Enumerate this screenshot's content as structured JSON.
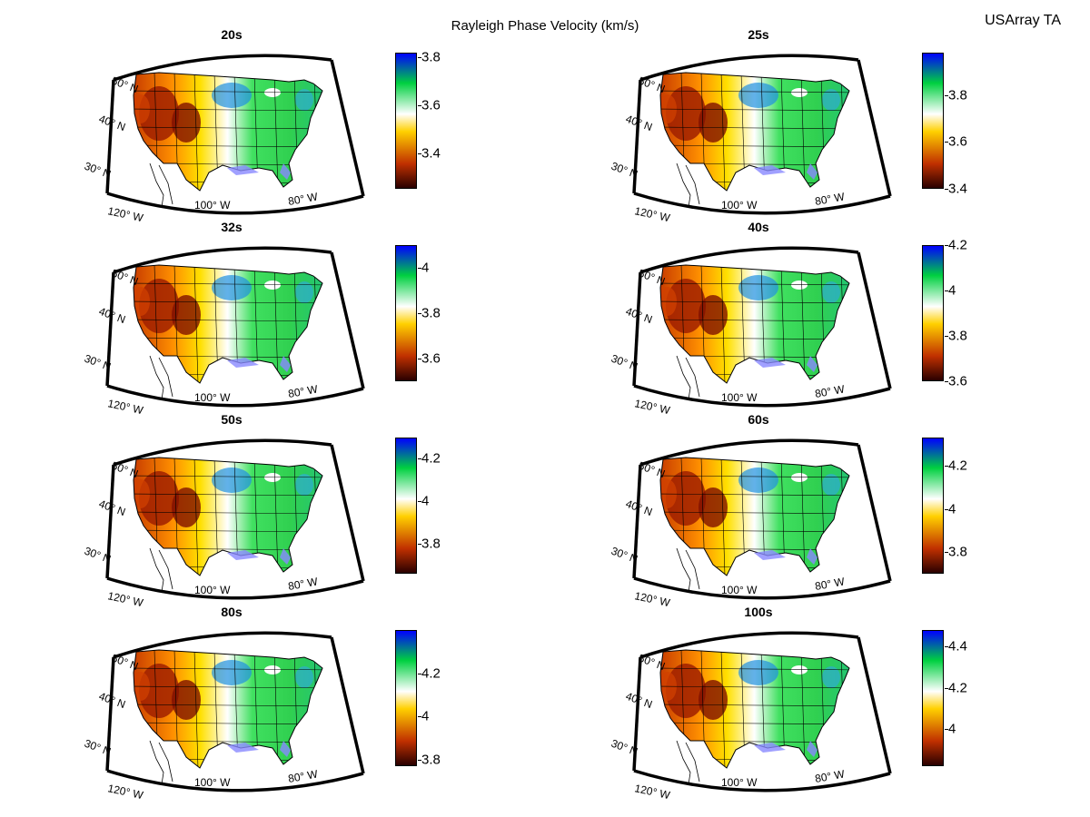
{
  "figure": {
    "title": "Rayleigh Phase Velocity (km/s)",
    "corner_label": "USArray TA"
  },
  "map_labels": {
    "lat_50": "50° N",
    "lat_40": "40° N",
    "lat_30": "30° N",
    "lon_120": "120° W",
    "lon_100": "100° W",
    "lon_80": "80° W"
  },
  "colors": {
    "slow_dark": "#2a0000",
    "slow": "#c03000",
    "mid_low": "#ffd000",
    "mid": "#ffffff",
    "mid_high": "#00d040",
    "fast": "#0000ff",
    "water": "#8888ff"
  },
  "chart_data": [
    {
      "type": "heatmap",
      "title": "20s",
      "colorbar": {
        "range": [
          3.25,
          3.82
        ],
        "ticks": [
          "3.4",
          "3.6",
          "3.8"
        ],
        "tick_values": [
          3.4,
          3.6,
          3.8
        ]
      }
    },
    {
      "type": "heatmap",
      "title": "25s",
      "colorbar": {
        "range": [
          3.4,
          3.98
        ],
        "ticks": [
          "3.4",
          "3.6",
          "3.8"
        ],
        "tick_values": [
          3.4,
          3.6,
          3.8
        ]
      }
    },
    {
      "type": "heatmap",
      "title": "32s",
      "colorbar": {
        "range": [
          3.5,
          4.1
        ],
        "ticks": [
          "3.6",
          "3.8",
          "4"
        ],
        "tick_values": [
          3.6,
          3.8,
          4.0
        ]
      }
    },
    {
      "type": "heatmap",
      "title": "40s",
      "colorbar": {
        "range": [
          3.6,
          4.2
        ],
        "ticks": [
          "3.6",
          "3.8",
          "4",
          "4.2"
        ],
        "tick_values": [
          3.6,
          3.8,
          4.0,
          4.2
        ]
      }
    },
    {
      "type": "heatmap",
      "title": "50s",
      "colorbar": {
        "range": [
          3.66,
          4.3
        ],
        "ticks": [
          "3.8",
          "4",
          "4.2"
        ],
        "tick_values": [
          3.8,
          4.0,
          4.2
        ]
      }
    },
    {
      "type": "heatmap",
      "title": "60s",
      "colorbar": {
        "range": [
          3.7,
          4.33
        ],
        "ticks": [
          "3.8",
          "4",
          "4.2"
        ],
        "tick_values": [
          3.8,
          4.0,
          4.2
        ]
      }
    },
    {
      "type": "heatmap",
      "title": "80s",
      "colorbar": {
        "range": [
          3.77,
          4.4
        ],
        "ticks": [
          "3.8",
          "4",
          "4.2"
        ],
        "tick_values": [
          3.8,
          4.0,
          4.2
        ]
      }
    },
    {
      "type": "heatmap",
      "title": "100s",
      "colorbar": {
        "range": [
          3.82,
          4.48
        ],
        "ticks": [
          "4",
          "4.2",
          "4.4"
        ],
        "tick_values": [
          4.0,
          4.2,
          4.4
        ]
      }
    }
  ]
}
